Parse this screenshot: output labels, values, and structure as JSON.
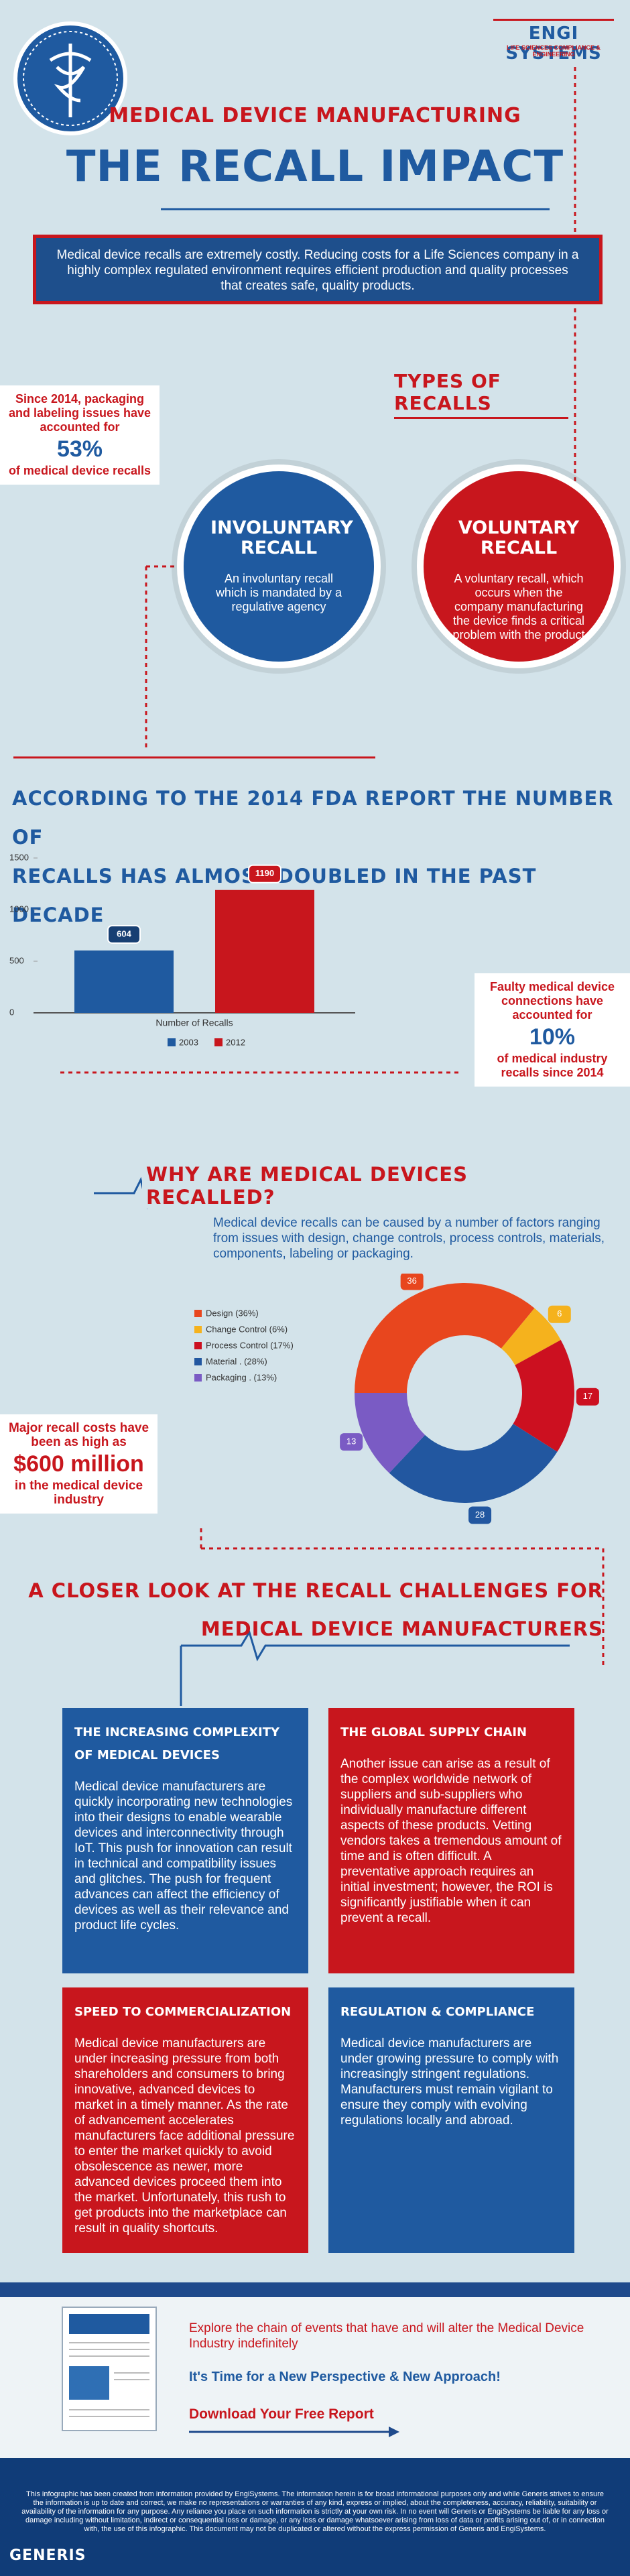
{
  "header": {
    "brand": "ENGI SYSTEMS",
    "brand_tagline": "LIFE SCIENCES COMPLIANCE & ENGINEERING",
    "kicker": "MEDICAL DEVICE MANUFACTURING",
    "title": "THE RECALL IMPACT"
  },
  "intro": "Medical device recalls are extremely costly. Reducing costs for a Life Sciences company in a highly complex regulated environment requires efficient production and quality processes that creates safe, quality products.",
  "callout_packaging": {
    "lead": "Since 2014, packaging and labeling issues have accounted for",
    "figure": "53%",
    "tail": "of medical device recalls"
  },
  "types": {
    "heading": "TYPES OF RECALLS",
    "involuntary": {
      "title": "INVOLUNTARY RECALL",
      "text": "An involuntary recall which is mandated by a regulative agency"
    },
    "voluntary": {
      "title": "VOLUNTARY RECALL",
      "text": "A voluntary recall, which occurs when the company manufacturing the device finds a critical problem with the product"
    }
  },
  "fda_heading": [
    "ACCORDING TO THE 2014 FDA REPORT THE NUMBER OF",
    "RECALLS HAS ALMOST DOUBLED IN THE PAST DECADE"
  ],
  "callout_faulty": {
    "lead": "Faulty medical device connections have accounted for",
    "figure": "10%",
    "tail": "of medical industry recalls since 2014"
  },
  "why": {
    "heading": "WHY ARE MEDICAL DEVICES RECALLED?",
    "text": "Medical device recalls can be caused by a number of factors ranging from issues with design, change controls, process controls, materials, components, labeling or packaging."
  },
  "callout_cost": {
    "lead": "Major recall costs have been as high as",
    "figure": "$600 million",
    "tail": "in the medical device industry"
  },
  "closer_heading": [
    "A CLOSER LOOK AT THE RECALL CHALLENGES FOR",
    "MEDICAL DEVICE MANUFACTURERS"
  ],
  "challenges": [
    {
      "title": "THE INCREASING COMPLEXITY OF MEDICAL DEVICES",
      "text": "Medical device manufacturers are quickly incorporating new technologies into their designs to enable wearable devices and interconnectivity through IoT. This push for innovation can result in technical and compatibility issues and glitches. The push for frequent advances can affect the efficiency of devices as well as their relevance and product life cycles."
    },
    {
      "title": "THE GLOBAL SUPPLY CHAIN",
      "text": "Another issue can arise as a result of the complex worldwide network of suppliers and sub-suppliers who individually manufacture different aspects of these products. Vetting vendors takes a tremendous amount of time and is often difficult. A preventative approach requires an initial investment; however, the ROI is significantly justifiable when it can prevent a recall."
    },
    {
      "title": "SPEED TO COMMERCIALIZATION",
      "text": "Medical device manufacturers are under increasing pressure from both shareholders and consumers to bring innovative, advanced devices to market in a timely manner. As the rate of advancement accelerates manufacturers face additional pressure to enter the market quickly to avoid obsolescence as newer, more advanced devices proceed them into the market. Unfortunately, this rush to get products into the marketplace can result in quality shortcuts."
    },
    {
      "title": "REGULATION & COMPLIANCE",
      "text": "Medical device manufacturers are under growing pressure to comply with increasingly stringent regulations. Manufacturers must remain vigilant to ensure they comply with evolving regulations locally and abroad."
    }
  ],
  "report": {
    "explore": "Explore the chain of events that have and will alter the Medical Device Industry indefinitely",
    "slogan": "It's Time for a New Perspective & New Approach!",
    "cta": "Download Your Free Report"
  },
  "footer": {
    "disclaimer": "This infographic has been created from information provided by EngiSystems. The information herein is for broad informational purposes only and while Generis strives to ensure the information is up to date and correct, we make no representations or warranties of any kind, express or implied, about the completeness, accuracy, reliability, suitability or availability of the information for any purpose. Any reliance you place on such information is strictly at your own risk. In no event will Generis or EngiSystems be liable for any loss or damage including without limitation, indirect or consequential loss or damage, or any loss or damage whatsoever arising from loss of data or profits arising out of, or in connection with, the use of this infographic. This document may not be duplicated or altered without the express permission of Generis and EngiSystems.",
    "brand": "GENERIS"
  },
  "chart_data": [
    {
      "type": "bar",
      "categories": [
        "Number of Recalls"
      ],
      "series": [
        {
          "name": "2003",
          "color": "#1f5aa0",
          "values": [
            604
          ]
        },
        {
          "name": "2012",
          "color": "#c8161d",
          "values": [
            1190
          ]
        }
      ],
      "ylim": [
        0,
        1500
      ],
      "yticks": [
        0,
        500,
        1000,
        1500
      ],
      "grid": false
    },
    {
      "type": "pie",
      "categories": [
        "Design (36%)",
        "Change Control (6%)",
        "Process Control (17%)",
        "Material . (28%)",
        "Packaging . (13%)"
      ],
      "values": [
        36,
        6,
        17,
        28,
        13
      ],
      "colors": [
        "#e8461e",
        "#f5b21d",
        "#cc1020",
        "#2257a0",
        "#7a5bc4"
      ]
    }
  ]
}
